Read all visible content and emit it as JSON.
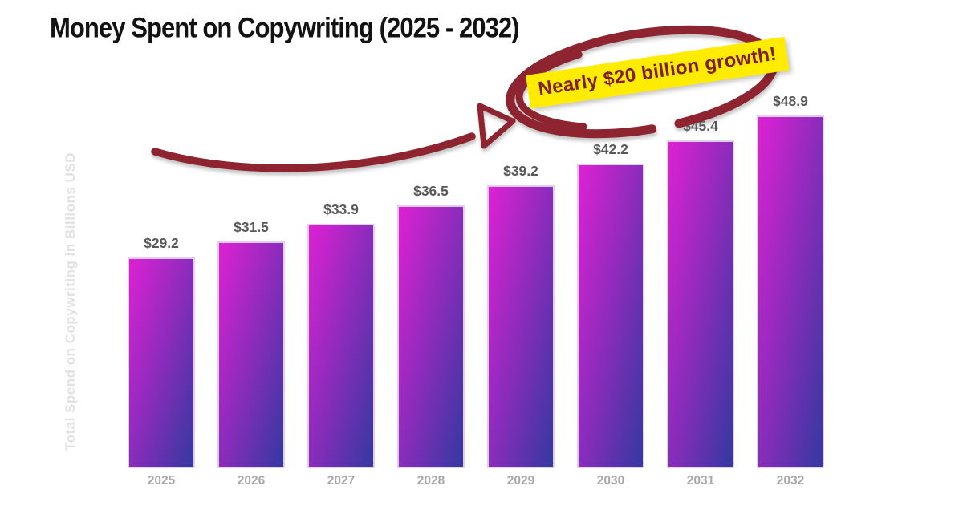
{
  "title": "Money Spent on Copywriting (2025 - 2032)",
  "ylabel": "Total Spend on Copywriting in Billions USD",
  "annotation": {
    "text": "Nearly $20 billion growth!"
  },
  "colors": {
    "bar_gradient_start": "#de21d3",
    "bar_gradient_mid": "#8a2cbb",
    "bar_gradient_end": "#3339a0",
    "annotation_red": "#8e2430",
    "highlight_yellow": "#ffec00",
    "annotation_text": "#7e1e29",
    "value_label": "#595959",
    "year_label": "#a8a8a8",
    "ylabel_color": "#e2e2e2",
    "title_color": "#121212"
  },
  "chart_data": {
    "type": "bar",
    "title": "Money Spent on Copywriting (2025 - 2032)",
    "categories": [
      "2025",
      "2026",
      "2027",
      "2028",
      "2029",
      "2030",
      "2031",
      "2032"
    ],
    "values": [
      29.2,
      31.5,
      33.9,
      36.5,
      39.2,
      42.2,
      45.4,
      48.9
    ],
    "value_labels": [
      "$29.2",
      "$31.5",
      "$33.9",
      "$36.5",
      "$39.2",
      "$42.2",
      "$45.4",
      "$48.9"
    ],
    "xlabel": "",
    "ylabel": "Total Spend on Copywriting in Billions USD",
    "ylim": [
      0,
      50
    ],
    "grid": false,
    "legend": null,
    "annotations": [
      "Nearly $20 billion growth!"
    ]
  }
}
